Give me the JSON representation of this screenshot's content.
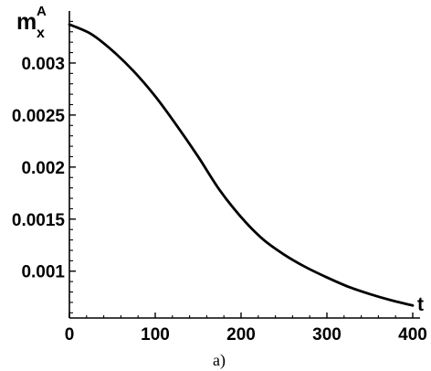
{
  "chart_data": {
    "type": "line",
    "ylabel": "m",
    "ylabel_sub": "x",
    "ylabel_sup": "A",
    "xlabel": "t",
    "caption": "a)",
    "xlim": [
      0,
      400
    ],
    "ylim": [
      0.00055,
      0.0035
    ],
    "x_ticks": [
      0,
      100,
      200,
      300,
      400
    ],
    "x_tick_labels": [
      "0",
      "100",
      "200",
      "300",
      "400"
    ],
    "y_ticks": [
      0.001,
      0.0015,
      0.002,
      0.0025,
      0.003
    ],
    "y_tick_labels": [
      "0.001",
      "0.0015",
      "0.002",
      "0.0025",
      "0.003"
    ],
    "grid": false,
    "series": [
      {
        "color": "#000000",
        "x": [
          0,
          25,
          50,
          75,
          100,
          125,
          150,
          175,
          200,
          225,
          250,
          275,
          300,
          325,
          350,
          375,
          400
        ],
        "y": [
          0.00337,
          0.00328,
          0.00312,
          0.00292,
          0.00268,
          0.0024,
          0.0021,
          0.00178,
          0.00152,
          0.00131,
          0.00116,
          0.00104,
          0.00094,
          0.00085,
          0.00078,
          0.00072,
          0.00067
        ]
      }
    ]
  }
}
